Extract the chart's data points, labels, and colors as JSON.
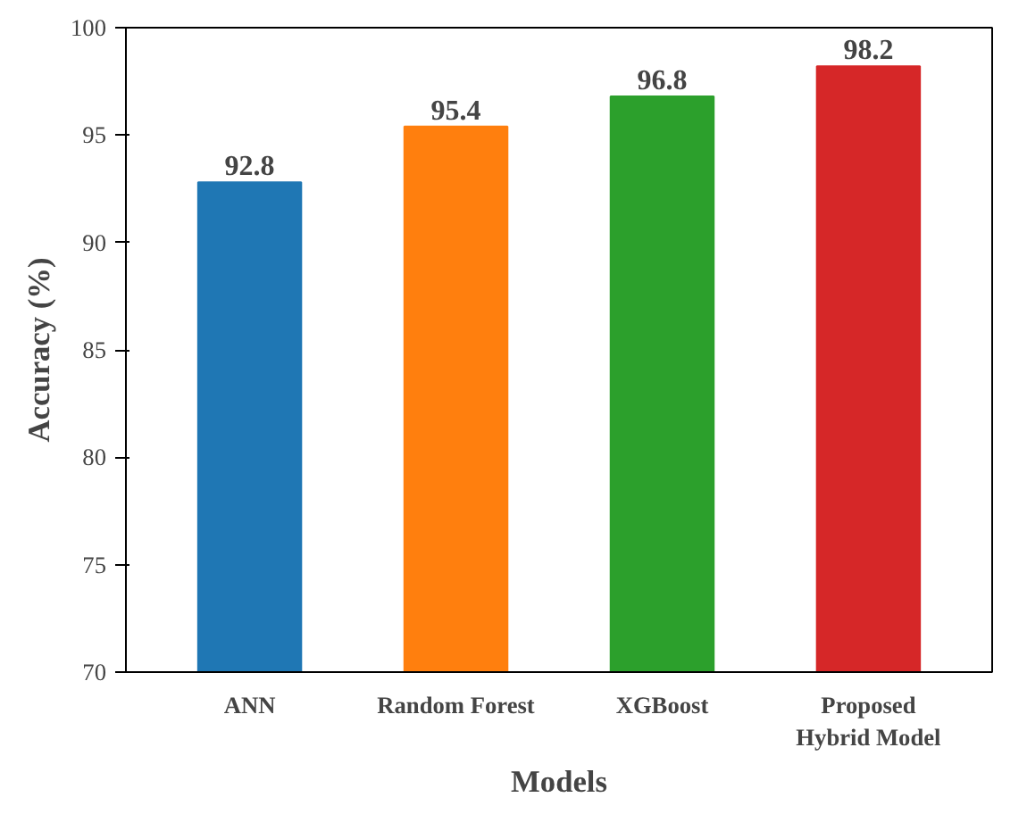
{
  "chart_data": {
    "type": "bar",
    "xlabel": "Models",
    "ylabel": "Accuracy (%)",
    "categories": [
      "ANN",
      "Random Forest",
      "XGBoost",
      "Proposed\nHybrid Model"
    ],
    "values": [
      92.8,
      95.4,
      96.8,
      98.2
    ],
    "colors": [
      "#1f77b4",
      "#ff7f0e",
      "#2ca02c",
      "#d62728"
    ],
    "ylim": [
      70,
      100
    ],
    "yticks": [
      70,
      75,
      80,
      85,
      90,
      95,
      100
    ],
    "grid": false,
    "data_labels": true
  }
}
